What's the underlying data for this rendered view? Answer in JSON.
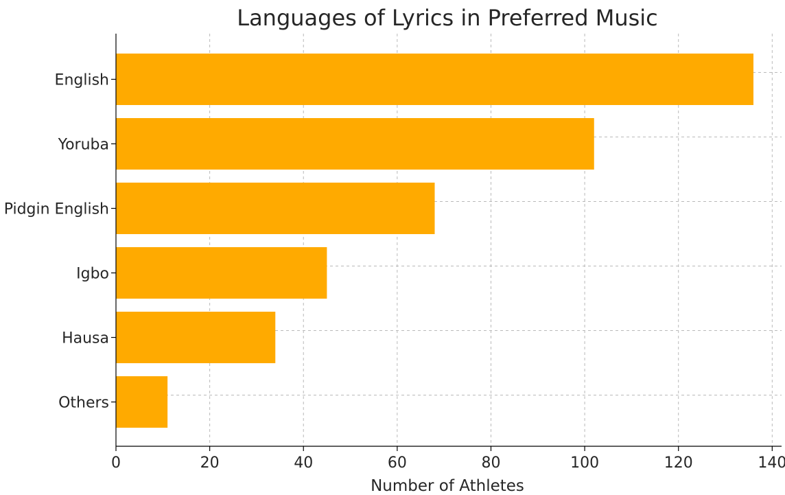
{
  "chart_data": {
    "type": "bar",
    "orientation": "horizontal",
    "title": "Languages of Lyrics in Preferred Music",
    "xlabel": "Number of Athletes",
    "ylabel": "",
    "categories": [
      "English",
      "Yoruba",
      "Pidgin English",
      "Igbo",
      "Hausa",
      "Others"
    ],
    "values": [
      136,
      102,
      68,
      45,
      34,
      11
    ],
    "xlim": [
      0,
      142
    ],
    "xticks": [
      0,
      20,
      40,
      60,
      80,
      100,
      120,
      140
    ],
    "grid": true,
    "legend": "none",
    "bar_color": "#ffaa00"
  }
}
